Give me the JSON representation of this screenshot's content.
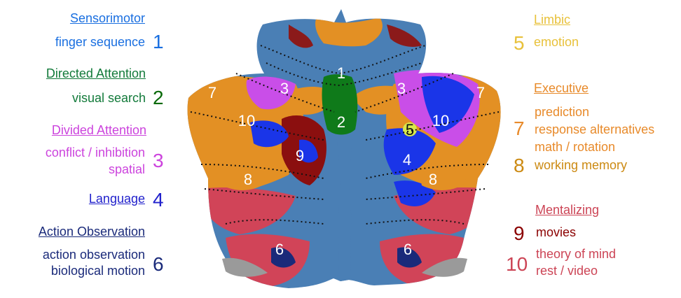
{
  "colors": {
    "sensorimotor": "#1a6fe0",
    "directed_attention": "#127a3a",
    "directed_number": "#0a6a0a",
    "divided_attention": "#cc44dd",
    "language": "#2222cc",
    "action_observation": "#1a2a7a",
    "limbic": "#e8c13a",
    "executive": "#e88a2a",
    "working_memory": "#cc8a12",
    "mentalizing": "#cc4455",
    "movies": "#8b0000"
  },
  "left_legend": {
    "sensorimotor": {
      "header": "Sensorimotor",
      "items": [
        "finger sequence"
      ],
      "number": "1"
    },
    "directed_attention": {
      "header": "Directed Attention",
      "items": [
        "visual search"
      ],
      "number": "2"
    },
    "divided_attention": {
      "header": "Divided Attention",
      "items": [
        "conflict / inhibition",
        "spatial"
      ],
      "number": "3"
    },
    "language": {
      "header": "Language",
      "number": "4"
    },
    "action_observation": {
      "header": "Action Observation",
      "items": [
        "action observation",
        "biological motion"
      ],
      "number": "6"
    }
  },
  "right_legend": {
    "limbic": {
      "header": "Limbic",
      "items": [
        "emotion"
      ],
      "number": "5"
    },
    "executive": {
      "header": "Executive",
      "items": [
        "prediction",
        "response alternatives",
        "math / rotation",
        "working memory"
      ],
      "number_a": "7",
      "number_b": "8"
    },
    "mentalizing": {
      "header": "Mentalizing",
      "items": [
        "movies",
        "theory of mind",
        "rest / video"
      ],
      "number_a": "9",
      "number_b": "10"
    }
  },
  "map_labels": {
    "l1": "1",
    "l2": "2",
    "l3a": "3",
    "l3b": "3",
    "l4": "4",
    "l5": "5",
    "l6a": "6",
    "l6b": "6",
    "l7a": "7",
    "l7b": "7",
    "l8a": "8",
    "l8b": "8",
    "l9": "9",
    "l10a": "10",
    "l10b": "10"
  }
}
